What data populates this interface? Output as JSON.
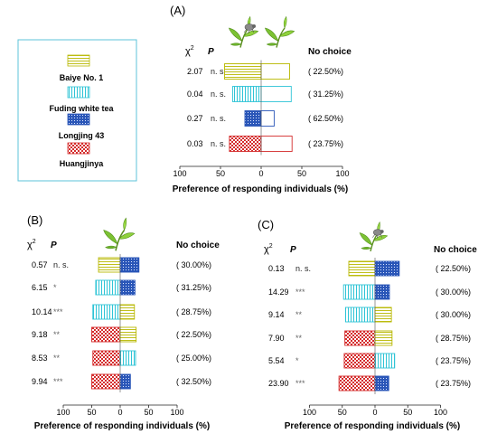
{
  "legend": {
    "items": [
      {
        "label": "Baiye No. 1",
        "color": "#b8b800",
        "pattern": "hlines"
      },
      {
        "label": "Fuding white tea",
        "color": "#2ec4d6",
        "pattern": "vlines"
      },
      {
        "label": "Longjing 43",
        "color": "#2a56b8",
        "pattern": "dots"
      },
      {
        "label": "Huangjinya",
        "color": "#d42c2c",
        "pattern": "checker"
      }
    ]
  },
  "icons": {
    "tea_shoot": "tea-leaf-icon",
    "pest": "insect-icon"
  },
  "chart_data": [
    {
      "type": "bar",
      "panel": "(A)",
      "orientation": "horizontal",
      "headers": {
        "chi": "χ",
        "chi_sup": "2",
        "p": "P",
        "no_choice": "No choice"
      },
      "xlabel": "Preference of responding individuals (%)",
      "xticks": [
        "100",
        "50",
        "0",
        "50",
        "100"
      ],
      "xlim": [
        -100,
        100
      ],
      "rows": [
        {
          "chi2": "2.07",
          "p": "n. s.",
          "left": {
            "cultivar": "Baiye No. 1",
            "value": 45
          },
          "right": {
            "cultivar": "none",
            "value": 35
          },
          "no_choice": "( 22.50%)"
        },
        {
          "chi2": "0.04",
          "p": "n. s.",
          "left": {
            "cultivar": "Fuding white tea",
            "value": 35
          },
          "right": {
            "cultivar": "none",
            "value": 37
          },
          "no_choice": "( 31.25%)"
        },
        {
          "chi2": "0.27",
          "p": "n. s.",
          "left": {
            "cultivar": "Longjing 43",
            "value": 20
          },
          "right": {
            "cultivar": "none",
            "value": 16
          },
          "no_choice": "( 62.50%)"
        },
        {
          "chi2": "0.03",
          "p": "n. s.",
          "left": {
            "cultivar": "Huangjinya",
            "value": 39
          },
          "right": {
            "cultivar": "none",
            "value": 38
          },
          "no_choice": "( 23.75%)"
        }
      ]
    },
    {
      "type": "bar",
      "panel": "(B)",
      "orientation": "horizontal",
      "headers": {
        "chi": "χ",
        "chi_sup": "2",
        "p": "P",
        "no_choice": "No choice"
      },
      "xlabel": "Preference of responding individuals (%)",
      "xticks": [
        "100",
        "50",
        "0",
        "50",
        "100"
      ],
      "xlim": [
        -100,
        100
      ],
      "rows": [
        {
          "chi2": "0.57",
          "p": "n. s.",
          "left": {
            "cultivar": "Baiye No. 1",
            "value": 38
          },
          "right": {
            "cultivar": "Longjing 43",
            "value": 33
          },
          "no_choice": "( 30.00%)"
        },
        {
          "chi2": "6.15",
          "p": "*",
          "left": {
            "cultivar": "Fuding white tea",
            "value": 43
          },
          "right": {
            "cultivar": "Longjing 43",
            "value": 26
          },
          "no_choice": "( 31.25%)"
        },
        {
          "chi2": "10.14",
          "p": "***",
          "left": {
            "cultivar": "Fuding white tea",
            "value": 48
          },
          "right": {
            "cultivar": "Baiye No. 1",
            "value": 25
          },
          "no_choice": "( 28.75%)"
        },
        {
          "chi2": "9.18",
          "p": "**",
          "left": {
            "cultivar": "Huangjinya",
            "value": 50
          },
          "right": {
            "cultivar": "Baiye No. 1",
            "value": 28
          },
          "no_choice": "( 22.50%)"
        },
        {
          "chi2": "8.53",
          "p": "**",
          "left": {
            "cultivar": "Huangjinya",
            "value": 48
          },
          "right": {
            "cultivar": "Fuding white tea",
            "value": 27
          },
          "no_choice": "( 25.00%)"
        },
        {
          "chi2": "9.94",
          "p": "***",
          "left": {
            "cultivar": "Huangjinya",
            "value": 50
          },
          "right": {
            "cultivar": "Longjing 43",
            "value": 18
          },
          "no_choice": "( 32.50%)"
        }
      ]
    },
    {
      "type": "bar",
      "panel": "(C)",
      "orientation": "horizontal",
      "headers": {
        "chi": "χ",
        "chi_sup": "2",
        "p": "P",
        "no_choice": "No choice"
      },
      "xlabel": "Preference of responding individuals (%)",
      "xticks": [
        "100",
        "50",
        "0",
        "50",
        "100"
      ],
      "xlim": [
        -100,
        100
      ],
      "rows": [
        {
          "chi2": "0.13",
          "p": "n. s.",
          "left": {
            "cultivar": "Baiye No. 1",
            "value": 40
          },
          "right": {
            "cultivar": "Longjing 43",
            "value": 37
          },
          "no_choice": "( 22.50%)"
        },
        {
          "chi2": "14.29",
          "p": "***",
          "left": {
            "cultivar": "Fuding white tea",
            "value": 48
          },
          "right": {
            "cultivar": "Longjing 43",
            "value": 22
          },
          "no_choice": "( 30.00%)"
        },
        {
          "chi2": "9.14",
          "p": "**",
          "left": {
            "cultivar": "Fuding white tea",
            "value": 45
          },
          "right": {
            "cultivar": "Baiye No. 1",
            "value": 25
          },
          "no_choice": "( 30.00%)"
        },
        {
          "chi2": "7.90",
          "p": "**",
          "left": {
            "cultivar": "Huangjinya",
            "value": 46
          },
          "right": {
            "cultivar": "Baiye No. 1",
            "value": 26
          },
          "no_choice": "( 28.75%)"
        },
        {
          "chi2": "5.54",
          "p": "*",
          "left": {
            "cultivar": "Huangjinya",
            "value": 47
          },
          "right": {
            "cultivar": "Fuding white tea",
            "value": 30
          },
          "no_choice": "( 23.75%)"
        },
        {
          "chi2": "23.90",
          "p": "***",
          "left": {
            "cultivar": "Huangjinya",
            "value": 55
          },
          "right": {
            "cultivar": "Longjing 43",
            "value": 21
          },
          "no_choice": "( 23.75%)"
        }
      ]
    }
  ]
}
